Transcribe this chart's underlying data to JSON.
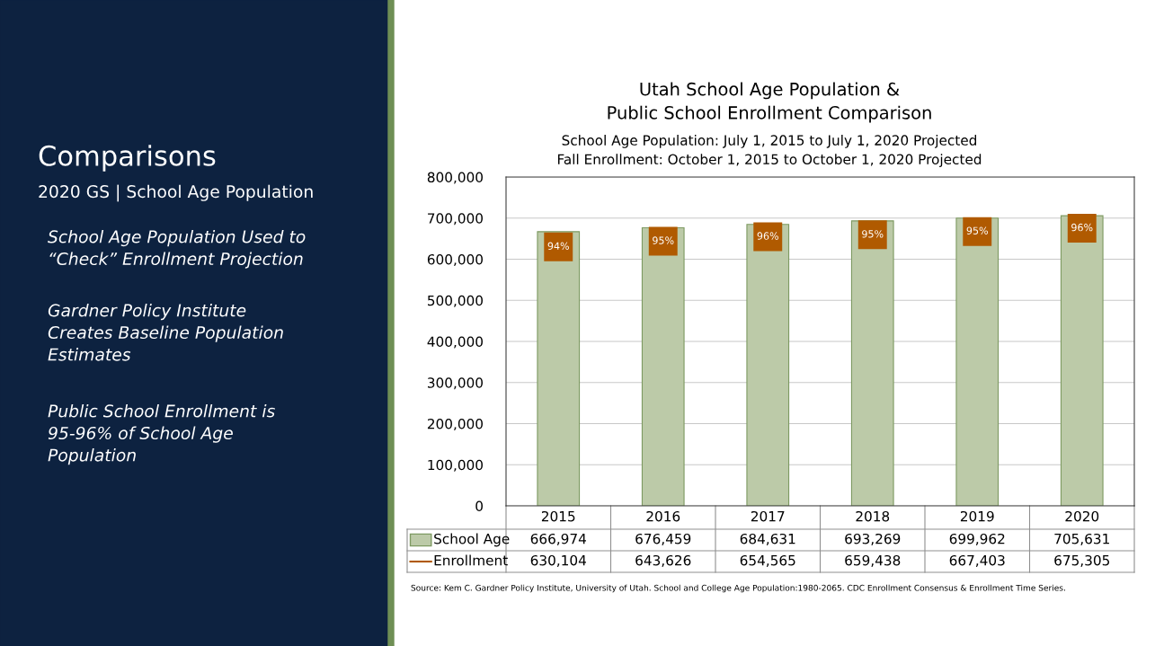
{
  "chart_data": [
    {
      "type": "other",
      "title": "Comparisons",
      "subtitle": "2020 GS | School Age Population",
      "annotations": [
        "School Age Population Used to\n“Check” Enrollment Projection",
        "Gardner Policy Institute\nCreates Baseline Population\nEstimates",
        "Public School Enrollment is\n95-96% of School Age\nPopulation"
      ]
    },
    {
      "type": "bar",
      "title": "Utah School Age Population &\nPublic School Enrollment Comparison",
      "subtitle": "School Age Population: July 1, 2015 to July 1, 2020 Projected\nFall Enrollment: October 1, 2015 to October 1, 2020 Projected",
      "categories": [
        "2015",
        "2016",
        "2017",
        "2018",
        "2019",
        "2020"
      ],
      "series": [
        {
          "name": "School Age",
          "color": "#bccaa8",
          "values": [
            666974,
            676459,
            684631,
            693269,
            699962,
            705631
          ],
          "value_labels": [
            "666,974",
            "676,459",
            "684,631",
            "693,269",
            "699,962",
            "705,631"
          ]
        },
        {
          "name": "Enrollment",
          "color": "#b05a00",
          "type": "scatter",
          "marker": "square",
          "values": [
            630104,
            643626,
            654565,
            659438,
            667403,
            675305
          ],
          "value_labels": [
            "630,104",
            "643,626",
            "654,565",
            "659,438",
            "667,403",
            "675,305"
          ]
        }
      ],
      "ylim": [
        0,
        800000
      ],
      "yticks": [
        0,
        {
          "value": 100000,
          "label": "100,000"
        },
        {
          "value": 200000,
          "label": "200,000"
        },
        {
          "value": 300000,
          "label": "300,000"
        },
        {
          "value": 400000,
          "label": "400,000"
        },
        {
          "value": 500000,
          "label": "500,000"
        },
        {
          "value": 600000,
          "label": "600,000"
        },
        {
          "value": 700000,
          "label": "700,000"
        },
        {
          "value": 800000,
          "label": "800,000"
        }
      ],
      "grid": "y",
      "legend": "bottom",
      "annotations": [
        {
          "text": "94%",
          "x": "2015",
          "y": 630104
        },
        {
          "text": "95%",
          "x": "2016",
          "y": 643626
        },
        {
          "text": "96%",
          "x": "2017",
          "y": 654565
        },
        {
          "text": "95%",
          "x": "2018",
          "y": 659438
        },
        {
          "text": "95%",
          "x": "2019",
          "y": 667403
        },
        {
          "text": "96%",
          "x": "2020",
          "y": 675305
        },
        "Source: Kem C. Gardner Policy Institute, University of Utah. School and College Age Population:1980-2065. CDC Enrollment Consensus & Enrollment Time Series."
      ]
    }
  ]
}
